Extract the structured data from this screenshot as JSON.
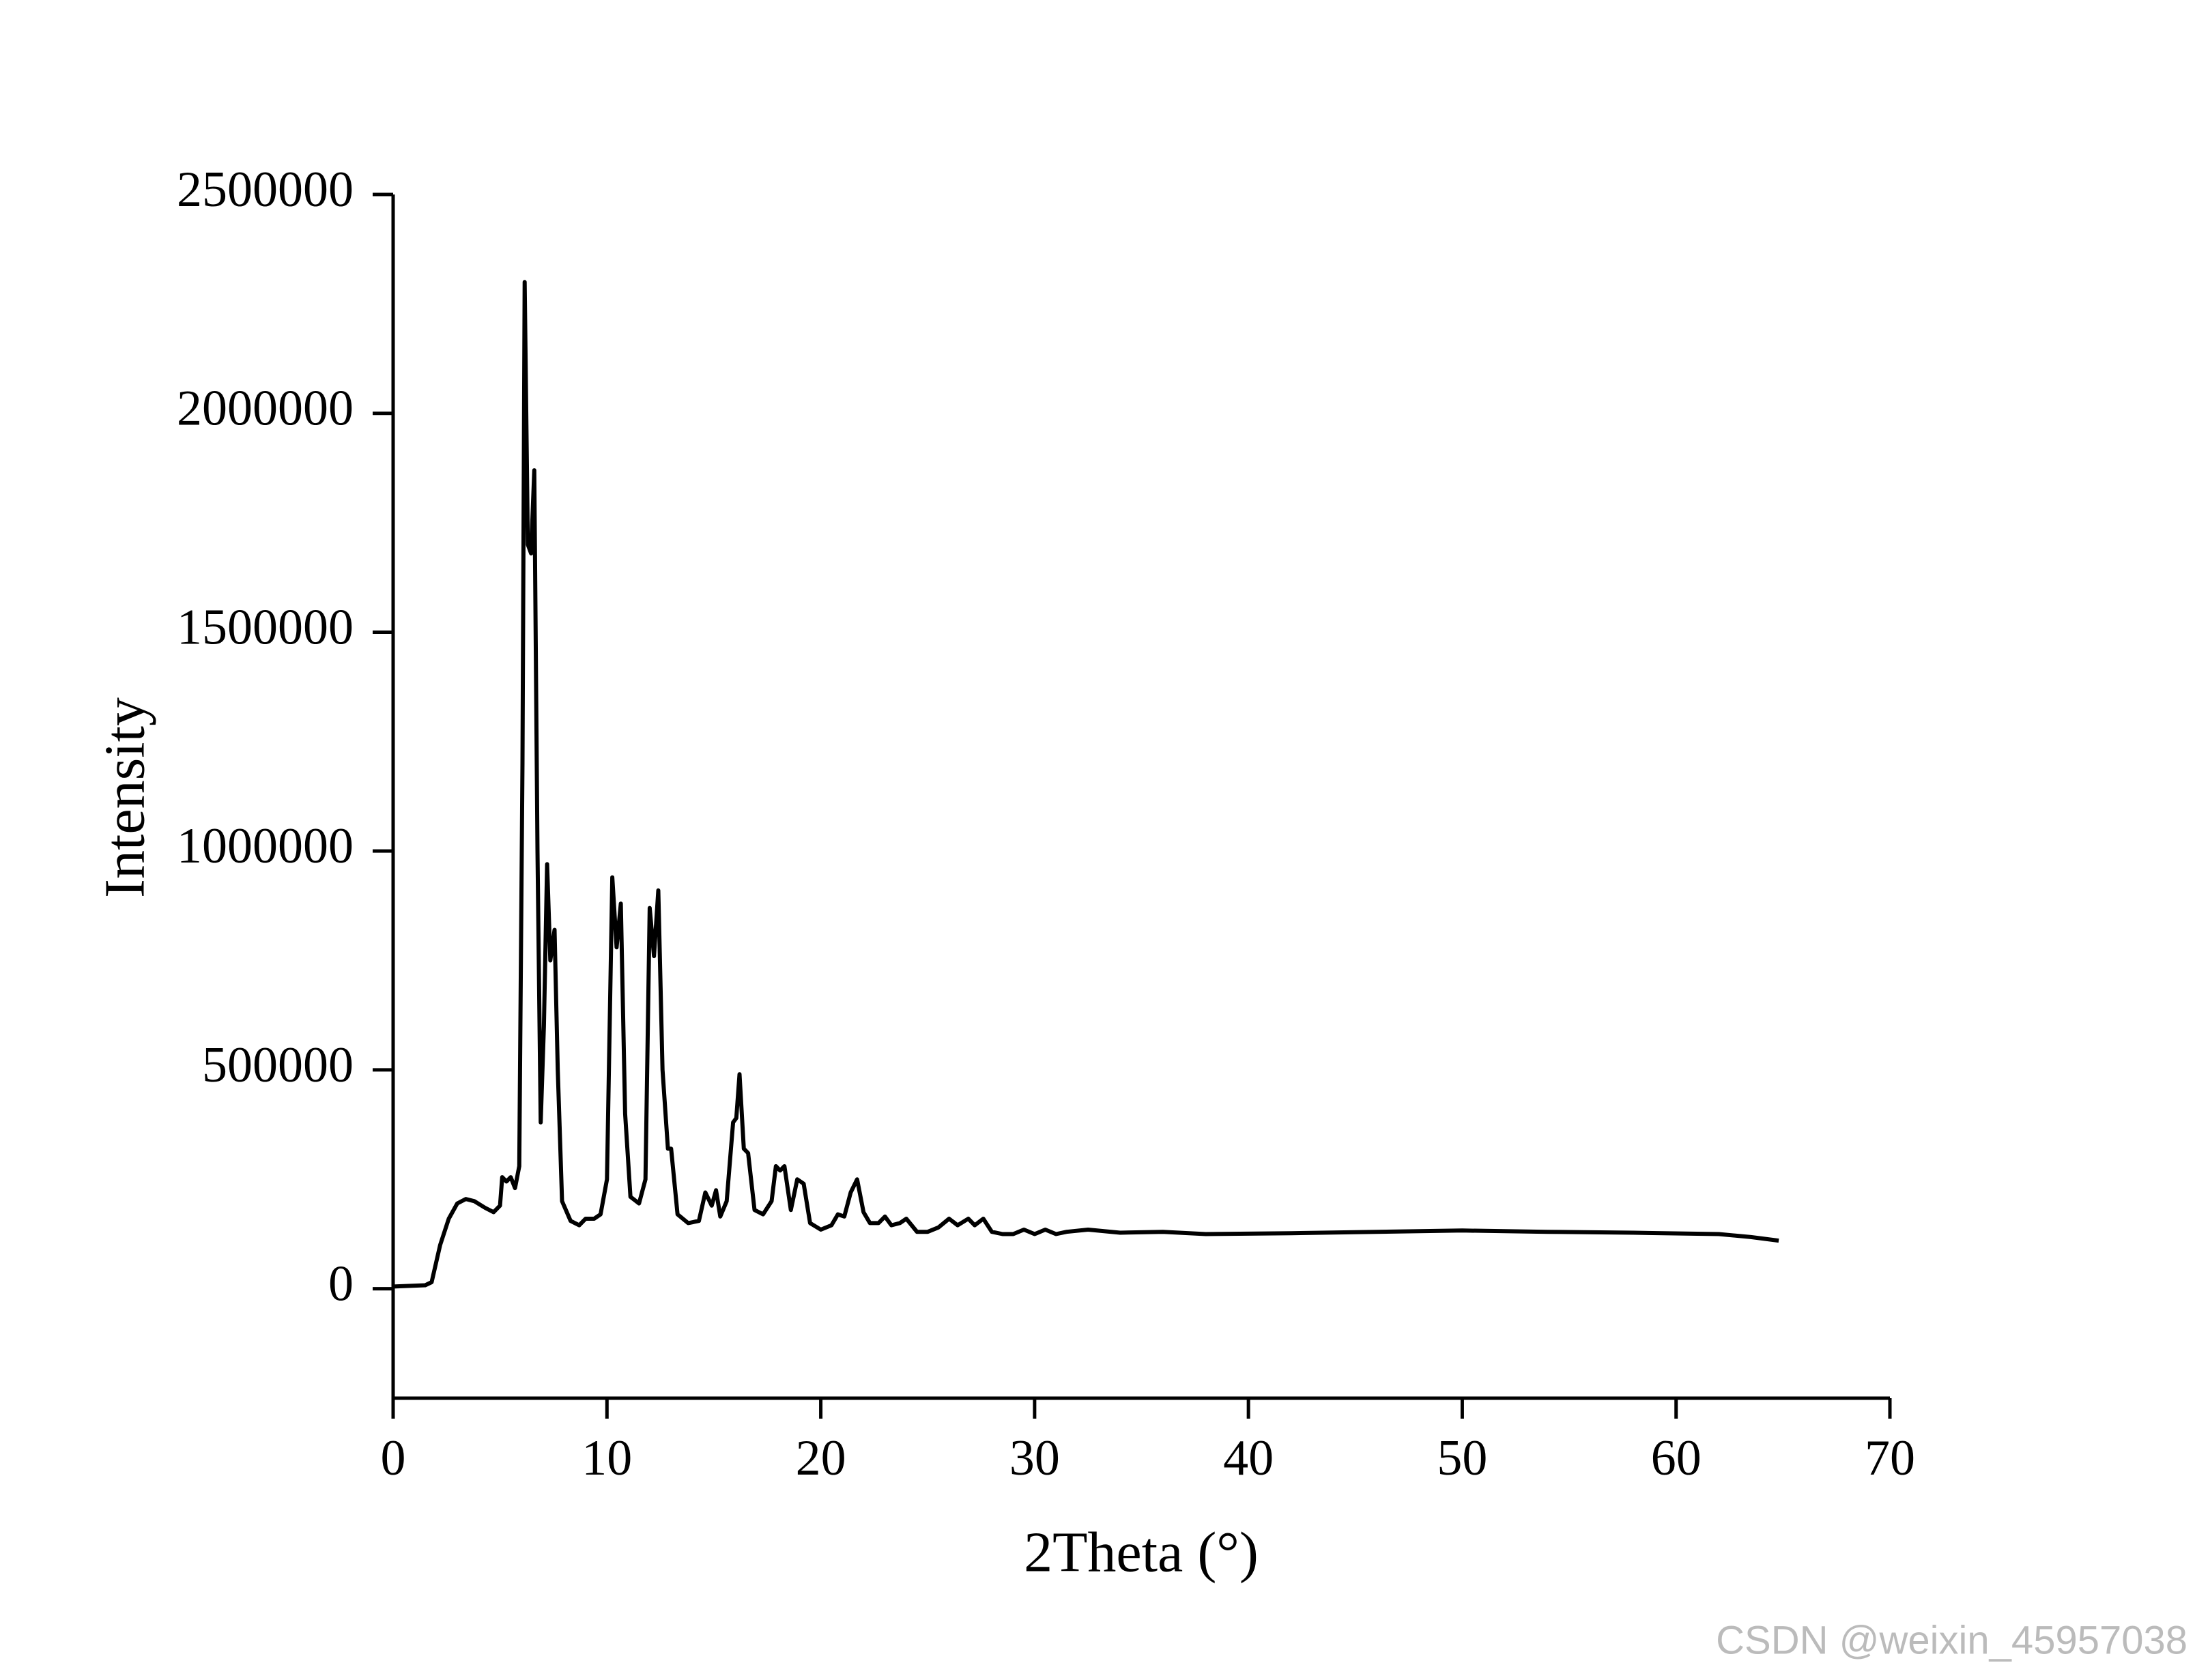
{
  "chart_data": {
    "type": "line",
    "x_label": "2Theta (°)",
    "y_label": "Intensity",
    "watermark": "CSDN @weixin_45957038",
    "xlim": [
      0,
      70
    ],
    "xticks": [
      0,
      10,
      20,
      30,
      40,
      50,
      60,
      70
    ],
    "ylim": [
      -250000,
      2500000
    ],
    "yticks": [
      0,
      500000,
      1000000,
      1500000,
      2000000,
      2500000
    ],
    "grid": false,
    "series": [
      {
        "color": "#000000",
        "x": [
          0,
          1.5,
          1.8,
          2.2,
          2.6,
          3.0,
          3.4,
          3.8,
          4.3,
          4.7,
          5.0,
          5.1,
          5.3,
          5.5,
          5.7,
          5.9,
          6.05,
          6.15,
          6.3,
          6.45,
          6.6,
          6.75,
          6.9,
          7.05,
          7.2,
          7.35,
          7.55,
          7.7,
          7.9,
          8.3,
          8.7,
          9.0,
          9.4,
          9.7,
          10.0,
          10.25,
          10.45,
          10.65,
          10.85,
          11.1,
          11.5,
          11.8,
          12.0,
          12.2,
          12.4,
          12.6,
          12.85,
          13.0,
          13.3,
          13.8,
          14.3,
          14.6,
          14.9,
          15.1,
          15.3,
          15.6,
          15.9,
          16.05,
          16.2,
          16.4,
          16.6,
          16.9,
          17.3,
          17.7,
          17.9,
          18.1,
          18.3,
          18.6,
          18.9,
          19.2,
          19.5,
          20.0,
          20.5,
          20.8,
          21.1,
          21.4,
          21.7,
          22.0,
          22.3,
          22.7,
          23.0,
          23.3,
          23.7,
          24.0,
          24.5,
          25.0,
          25.5,
          26.0,
          26.4,
          26.9,
          27.2,
          27.6,
          28.0,
          28.5,
          29.0,
          29.5,
          30.0,
          30.5,
          31.0,
          31.5,
          32.5,
          34,
          36,
          38,
          42,
          46,
          50,
          54,
          58,
          62,
          63.5,
          64.8
        ],
        "values": [
          5000,
          8000,
          15000,
          100000,
          160000,
          195000,
          205000,
          200000,
          185000,
          175000,
          190000,
          255000,
          245000,
          255000,
          230000,
          280000,
          1200000,
          2300000,
          1700000,
          1680000,
          1870000,
          1000000,
          380000,
          600000,
          970000,
          750000,
          820000,
          500000,
          200000,
          155000,
          145000,
          160000,
          160000,
          170000,
          250000,
          940000,
          780000,
          880000,
          400000,
          210000,
          195000,
          250000,
          870000,
          760000,
          910000,
          500000,
          320000,
          320000,
          170000,
          150000,
          155000,
          220000,
          190000,
          225000,
          165000,
          200000,
          380000,
          390000,
          490000,
          320000,
          310000,
          180000,
          170000,
          200000,
          280000,
          270000,
          280000,
          180000,
          250000,
          240000,
          150000,
          135000,
          145000,
          170000,
          165000,
          220000,
          250000,
          175000,
          150000,
          150000,
          165000,
          145000,
          150000,
          160000,
          130000,
          130000,
          140000,
          160000,
          145000,
          160000,
          145000,
          160000,
          130000,
          125000,
          125000,
          135000,
          125000,
          135000,
          125000,
          130000,
          135000,
          128000,
          130000,
          125000,
          127000,
          130000,
          133000,
          130000,
          128000,
          125000,
          118000,
          110000
        ]
      }
    ]
  }
}
